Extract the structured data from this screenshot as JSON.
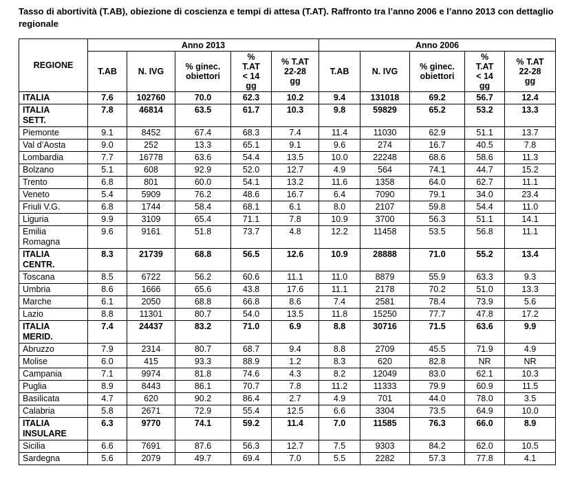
{
  "title": "Tasso di abortività (T.AB), obiezione di coscienza e tempi di attesa (T.AT). Raffronto tra l’anno 2006 e l’anno 2013 con dettaglio regionale",
  "table": {
    "region_header": "REGIONE",
    "year_groups": [
      "Anno 2013",
      "Anno 2006"
    ],
    "sub_headers": [
      "T.AB",
      "N. IVG",
      "% ginec.\nobiettori",
      "%\nT.AT\n< 14\ngg",
      "% T.AT\n22-28\ngg"
    ],
    "rows": [
      {
        "region": "ITALIA",
        "bold": true,
        "y2013": [
          "7.6",
          "102760",
          "70.0",
          "62.3",
          "10.2"
        ],
        "y2006": [
          "9.4",
          "131018",
          "69.2",
          "56.7",
          "12.4"
        ]
      },
      {
        "region": "ITALIA\nSETT.",
        "bold": true,
        "y2013": [
          "7.8",
          "46814",
          "63.5",
          "61.7",
          "10.3"
        ],
        "y2006": [
          "9.8",
          "59829",
          "65.2",
          "53.2",
          "13.3"
        ]
      },
      {
        "region": "Piemonte",
        "bold": false,
        "y2013": [
          "9.1",
          "8452",
          "67.4",
          "68.3",
          "7.4"
        ],
        "y2006": [
          "11.4",
          "11030",
          "62.9",
          "51.1",
          "13.7"
        ]
      },
      {
        "region": "Val d’Aosta",
        "bold": false,
        "y2013": [
          "9.0",
          "252",
          "13.3",
          "65.1",
          "9.1"
        ],
        "y2006": [
          "9.6",
          "274",
          "16.7",
          "40.5",
          "7.8"
        ]
      },
      {
        "region": "Lombardia",
        "bold": false,
        "y2013": [
          "7.7",
          "16778",
          "63.6",
          "54.4",
          "13.5"
        ],
        "y2006": [
          "10.0",
          "22248",
          "68.6",
          "58.6",
          "11.3"
        ]
      },
      {
        "region": "Bolzano",
        "bold": false,
        "y2013": [
          "5.1",
          "608",
          "92.9",
          "52.0",
          "12.7"
        ],
        "y2006": [
          "4.9",
          "564",
          "74.1",
          "44.7",
          "15.2"
        ]
      },
      {
        "region": "Trento",
        "bold": false,
        "y2013": [
          "6.8",
          "801",
          "60.0",
          "54.1",
          "13.2"
        ],
        "y2006": [
          "11.6",
          "1358",
          "64.0",
          "62.7",
          "11.1"
        ]
      },
      {
        "region": "Veneto",
        "bold": false,
        "y2013": [
          "5.4",
          "5909",
          "76.2",
          "48.6",
          "16.7"
        ],
        "y2006": [
          "6.4",
          "7090",
          "79.1",
          "34.0",
          "23.4"
        ]
      },
      {
        "region": "Friuli V.G.",
        "bold": false,
        "y2013": [
          "6.8",
          "1744",
          "58.4",
          "68.1",
          "6.1"
        ],
        "y2006": [
          "8.0",
          "2107",
          "59.8",
          "54.4",
          "11.0"
        ]
      },
      {
        "region": "Liguria",
        "bold": false,
        "y2013": [
          "9.9",
          "3109",
          "65.4",
          "71.1",
          "7.8"
        ],
        "y2006": [
          "10.9",
          "3700",
          "56.3",
          "51.1",
          "14.1"
        ]
      },
      {
        "region": "Emilia\nRomagna",
        "bold": false,
        "y2013": [
          "9.6",
          "9161",
          "51.8",
          "73.7",
          "4.8"
        ],
        "y2006": [
          "12.2",
          "11458",
          "53.5",
          "56.8",
          "11.1"
        ]
      },
      {
        "region": "ITALIA\nCENTR.",
        "bold": true,
        "y2013": [
          "8.3",
          "21739",
          "68.8",
          "56.5",
          "12.6"
        ],
        "y2006": [
          "10.9",
          "28888",
          "71.0",
          "55.2",
          "13.4"
        ]
      },
      {
        "region": "Toscana",
        "bold": false,
        "y2013": [
          "8.5",
          "6722",
          "56.2",
          "60.6",
          "11.1"
        ],
        "y2006": [
          "11.0",
          "8879",
          "55.9",
          "63.3",
          "9.3"
        ]
      },
      {
        "region": "Umbria",
        "bold": false,
        "y2013": [
          "8.6",
          "1666",
          "65.6",
          "43.8",
          "17.6"
        ],
        "y2006": [
          "11.1",
          "2178",
          "70.2",
          "51.0",
          "13.3"
        ]
      },
      {
        "region": "Marche",
        "bold": false,
        "y2013": [
          "6.1",
          "2050",
          "68.8",
          "66.8",
          "8.6"
        ],
        "y2006": [
          "7.4",
          "2581",
          "78.4",
          "73.9",
          "5.6"
        ]
      },
      {
        "region": "Lazio",
        "bold": false,
        "y2013": [
          "8.8",
          "11301",
          "80.7",
          "54.0",
          "13.5"
        ],
        "y2006": [
          "11.8",
          "15250",
          "77.7",
          "47.8",
          "17.2"
        ]
      },
      {
        "region": "ITALIA\nMERID.",
        "bold": true,
        "y2013": [
          "7.4",
          "24437",
          "83.2",
          "71.0",
          "6.9"
        ],
        "y2006": [
          "8.8",
          "30716",
          "71.5",
          "63.6",
          "9.9"
        ]
      },
      {
        "region": "Abruzzo",
        "bold": false,
        "y2013": [
          "7.9",
          "2314",
          "80.7",
          "68.7",
          "9.4"
        ],
        "y2006": [
          "8.8",
          "2709",
          "45.5",
          "71.9",
          "4.9"
        ]
      },
      {
        "region": "Molise",
        "bold": false,
        "y2013": [
          "6.0",
          "415",
          "93.3",
          "88.9",
          "1.2"
        ],
        "y2006": [
          "8.3",
          "620",
          "82.8",
          "NR",
          "NR"
        ]
      },
      {
        "region": "Campania",
        "bold": false,
        "y2013": [
          "7.1",
          "9974",
          "81.8",
          "74.6",
          "4.3"
        ],
        "y2006": [
          "8.2",
          "12049",
          "83.0",
          "62.1",
          "10.3"
        ]
      },
      {
        "region": "Puglia",
        "bold": false,
        "y2013": [
          "8.9",
          "8443",
          "86.1",
          "70.7",
          "7.8"
        ],
        "y2006": [
          "11.2",
          "11333",
          "79.9",
          "60.9",
          "11.5"
        ]
      },
      {
        "region": "Basilicata",
        "bold": false,
        "y2013": [
          "4.7",
          "620",
          "90.2",
          "86.4",
          "2.7"
        ],
        "y2006": [
          "4.9",
          "701",
          "44.0",
          "78.0",
          "3.5"
        ]
      },
      {
        "region": "Calabria",
        "bold": false,
        "y2013": [
          "5.8",
          "2671",
          "72.9",
          "55.4",
          "12.5"
        ],
        "y2006": [
          "6.6",
          "3304",
          "73.5",
          "64.9",
          "10.0"
        ]
      },
      {
        "region": "ITALIA\nINSULARE",
        "bold": true,
        "y2013": [
          "6.3",
          "9770",
          "74.1",
          "59.2",
          "11.4"
        ],
        "y2006": [
          "7.0",
          "11585",
          "76.3",
          "66.0",
          "8.9"
        ]
      },
      {
        "region": "Sicilia",
        "bold": false,
        "y2013": [
          "6.6",
          "7691",
          "87.6",
          "56.3",
          "12.7"
        ],
        "y2006": [
          "7.5",
          "9303",
          "84.2",
          "62.0",
          "10.5"
        ]
      },
      {
        "region": "Sardegna",
        "bold": false,
        "y2013": [
          "5.6",
          "2079",
          "49.7",
          "69.4",
          "7.0"
        ],
        "y2006": [
          "5.5",
          "2282",
          "57.3",
          "77.8",
          "4.1"
        ]
      }
    ]
  }
}
